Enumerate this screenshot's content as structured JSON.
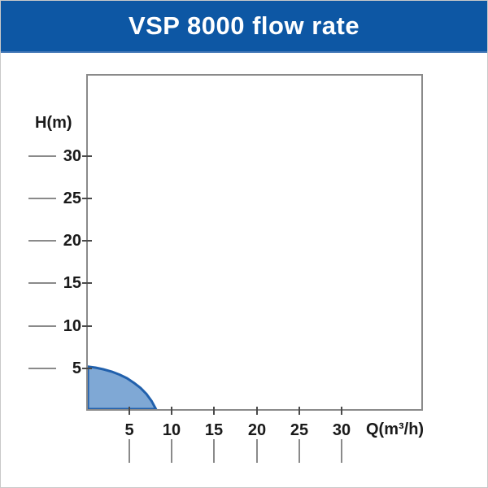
{
  "header": {
    "title": "VSP 8000 flow rate",
    "bg_color": "#0d57a4",
    "text_color": "#ffffff"
  },
  "chart_data": {
    "type": "area",
    "title": "VSP 8000 flow rate",
    "xlabel": "Q(m³/h)",
    "ylabel": "H(m)",
    "x_ticks": [
      5,
      10,
      15,
      20,
      25,
      30
    ],
    "y_ticks": [
      5,
      10,
      15,
      20,
      25,
      30
    ],
    "xlim": [
      0,
      39.5
    ],
    "ylim": [
      0,
      39.5
    ],
    "grid": false,
    "legend": "none",
    "series": [
      {
        "name": "pump-flow-curve",
        "points": [
          [
            0,
            5.0
          ],
          [
            0.9,
            4.88
          ],
          [
            1.8,
            4.68
          ],
          [
            2.8,
            4.41
          ],
          [
            3.7,
            4.06
          ],
          [
            4.6,
            3.63
          ],
          [
            5.4,
            3.1
          ],
          [
            6.2,
            2.48
          ],
          [
            6.9,
            1.76
          ],
          [
            7.5,
            0.93
          ],
          [
            8,
            0
          ]
        ],
        "max_head_m": 5,
        "max_flow_m3h": 8
      }
    ],
    "colors": {
      "fill": "#7fa8d5",
      "stroke": "#2160ac",
      "axis": "#8a8a8a",
      "tick": "#4a4a4a",
      "text": "#1a1a1a"
    }
  }
}
